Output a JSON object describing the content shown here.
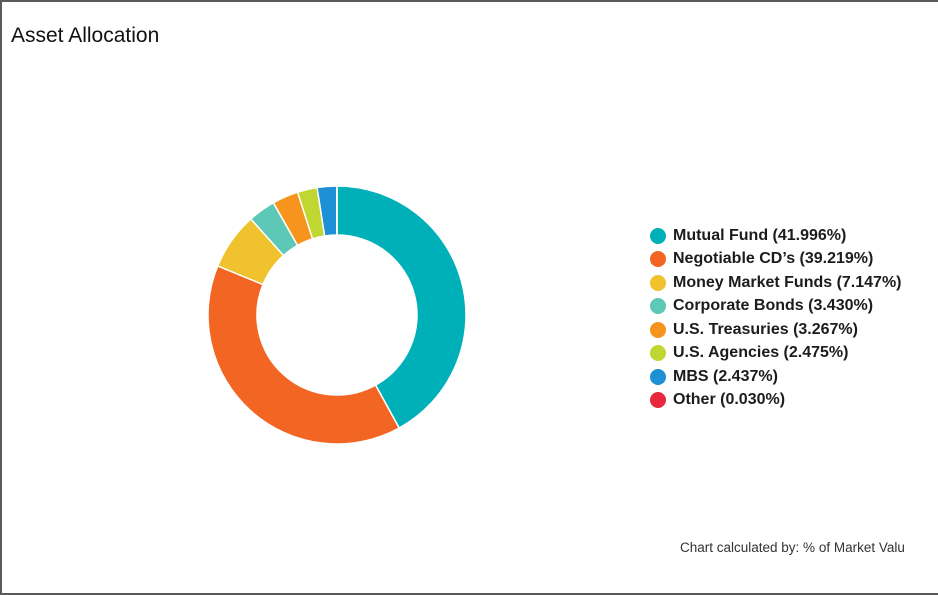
{
  "title": "Asset Allocation",
  "footnote": "Chart calculated by: % of Market Valu",
  "chart_data": {
    "type": "pie",
    "variant": "donut",
    "title": "Asset Allocation",
    "legend_position": "right",
    "slices": [
      {
        "label": "Mutual Fund",
        "value": 41.996,
        "legend_text": "Mutual Fund (41.996%)",
        "color": "#00b0b9"
      },
      {
        "label": "Negotiable CD’s",
        "value": 39.219,
        "legend_text": "Negotiable CD’s (39.219%)",
        "color": "#f26522"
      },
      {
        "label": "Money Market Funds",
        "value": 7.147,
        "legend_text": "Money Market Funds (7.147%)",
        "color": "#f0c22e"
      },
      {
        "label": "Corporate Bonds",
        "value": 3.43,
        "legend_text": "Corporate Bonds (3.430%)",
        "color": "#5cc8b5"
      },
      {
        "label": "U.S. Treasuries",
        "value": 3.267,
        "legend_text": "U.S. Treasuries (3.267%)",
        "color": "#f7941d"
      },
      {
        "label": "U.S. Agencies",
        "value": 2.475,
        "legend_text": "U.S. Agencies (2.475%)",
        "color": "#bfd730"
      },
      {
        "label": "MBS",
        "value": 2.437,
        "legend_text": "MBS (2.437%)",
        "color": "#1e90d6"
      },
      {
        "label": "Other",
        "value": 0.03,
        "legend_text": "Other (0.030%)",
        "color": "#e8283c"
      }
    ]
  }
}
